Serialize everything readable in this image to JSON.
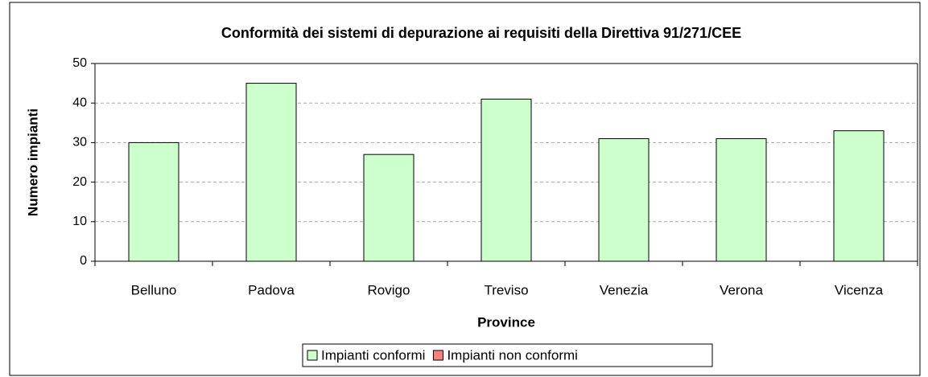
{
  "chart_data": {
    "type": "stacked_bar",
    "title": "Conformità dei sistemi di depurazione ai requisiti della Direttiva 91/271/CEE",
    "x_label": "Province",
    "y_label": "Numero impianti",
    "categories": [
      "Belluno",
      "Padova",
      "Rovigo",
      "Treviso",
      "Venezia",
      "Verona",
      "Vicenza"
    ],
    "series": [
      {
        "name": "Impianti conformi",
        "color": "#ccffcc",
        "values": [
          30,
          45,
          27,
          41,
          31,
          31,
          33
        ]
      },
      {
        "name": "Impianti non conformi",
        "color": "#ff8080",
        "values": [
          0,
          0,
          0,
          0,
          0,
          0,
          0
        ]
      }
    ],
    "ylim": [
      0,
      50
    ],
    "yticks": [
      0,
      10,
      20,
      30,
      40,
      50
    ],
    "grid": true,
    "legend": "bottom"
  }
}
